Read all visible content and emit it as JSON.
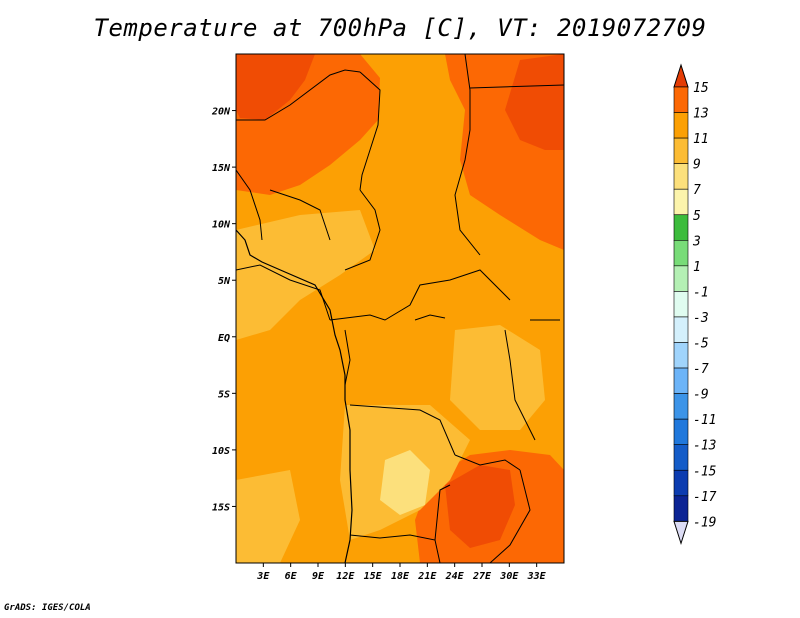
{
  "title": "Temperature at 700hPa [C], VT: 2019072709",
  "credit": "GrADS: IGES/COLA",
  "map": {
    "lon_range": [
      0,
      36
    ],
    "lat_range": [
      -20,
      25
    ],
    "lon_ticks": [
      "3E",
      "6E",
      "9E",
      "12E",
      "15E",
      "18E",
      "21E",
      "24E",
      "27E",
      "30E",
      "33E"
    ],
    "lat_ticks": [
      "20N",
      "15N",
      "10N",
      "5N",
      "EQ",
      "5S",
      "10S",
      "15S"
    ],
    "regions": [
      {
        "value": 13,
        "color": "#f04c04"
      },
      {
        "value": 11,
        "color": "#fc6804"
      },
      {
        "value": 9,
        "color": "#fca004"
      },
      {
        "value": 7,
        "color": "#fcbc34"
      },
      {
        "value": 5,
        "color": "#fce07c"
      }
    ]
  },
  "legend": {
    "labels": [
      "15",
      "13",
      "11",
      "9",
      "7",
      "5",
      "3",
      "1",
      "-1",
      "-3",
      "-5",
      "-7",
      "-9",
      "-11",
      "-13",
      "-15",
      "-17",
      "-19"
    ],
    "colors": [
      "#fc6804",
      "#fca004",
      "#fcbc34",
      "#fce07c",
      "#fcf4ac",
      "#3cbc3c",
      "#78dc78",
      "#b4f0b4",
      "#e0fcf0",
      "#d4f0fc",
      "#a0d4fc",
      "#6cb4f8",
      "#3c94e8",
      "#2078dc",
      "#145cc8",
      "#0c3cb0",
      "#0c2494"
    ],
    "top_color": "#e43c04",
    "bottom_color": "#0c1480",
    "bottom_tip_color": "#dcdcf4"
  }
}
